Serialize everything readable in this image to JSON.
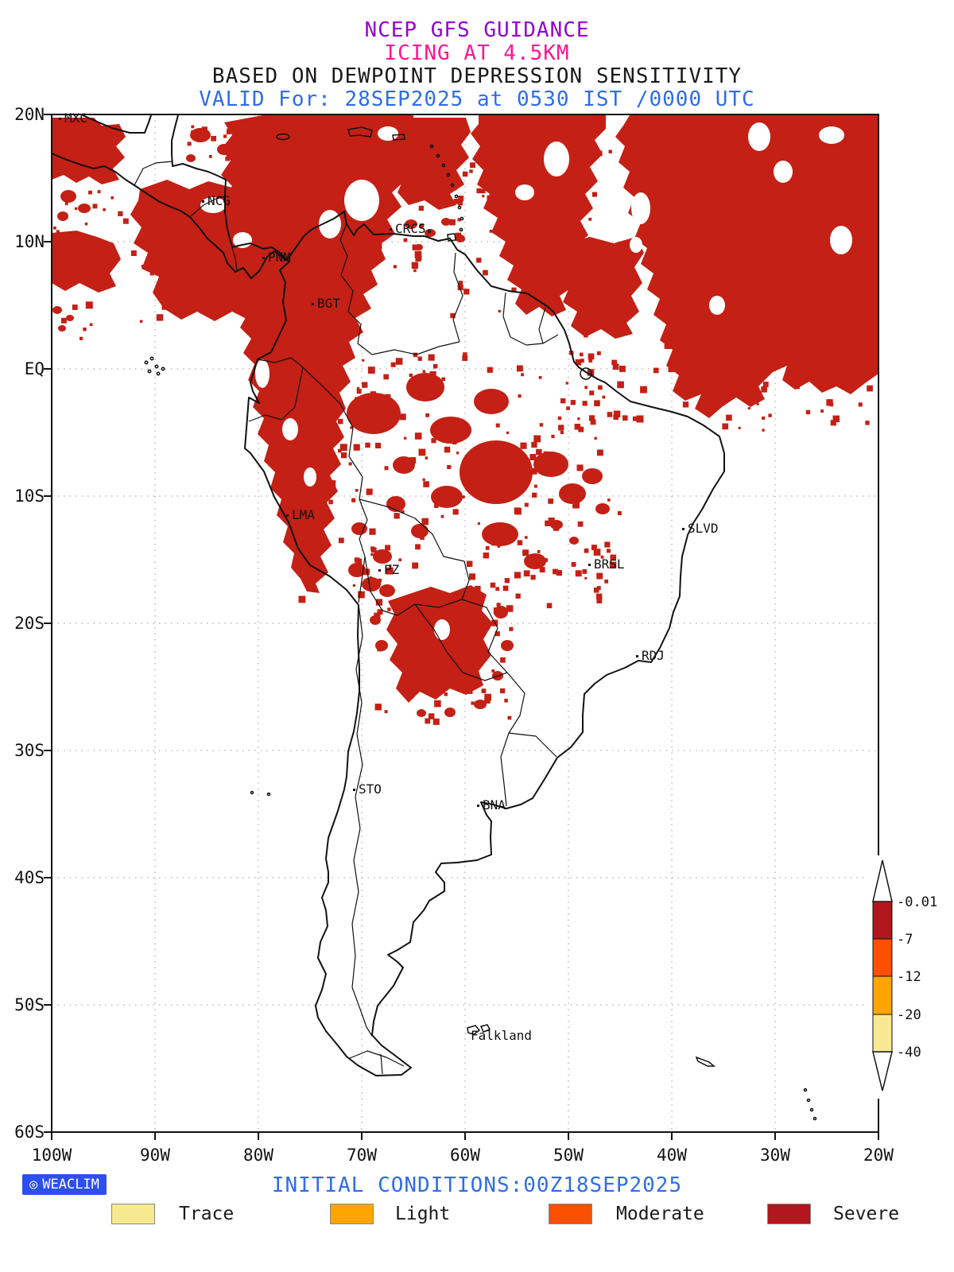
{
  "header": {
    "line1": "NCEP GFS GUIDANCE",
    "line2": "ICING AT 4.5KM",
    "line3": "BASED ON DEWPOINT DEPRESSION SENSITIVITY",
    "line4": "VALID For: 28SEP2025 at 0530 IST /0000 UTC"
  },
  "map": {
    "region": "South America",
    "lat_ticks": [
      "20N",
      "10N",
      "EQ",
      "10S",
      "20S",
      "30S",
      "40S",
      "50S",
      "60S"
    ],
    "lon_ticks": [
      "100W",
      "90W",
      "80W",
      "70W",
      "60W",
      "50W",
      "40W",
      "30W",
      "20W"
    ],
    "places": [
      {
        "label": "MXC"
      },
      {
        "label": "NCG"
      },
      {
        "label": "PNM"
      },
      {
        "label": "CRCS"
      },
      {
        "label": "BGT"
      },
      {
        "label": "LMA"
      },
      {
        "label": "PZ"
      },
      {
        "label": "BRSL"
      },
      {
        "label": "SLVD"
      },
      {
        "label": "RDJ"
      },
      {
        "label": "STO"
      },
      {
        "label": "BNA"
      },
      {
        "label": "Falkland"
      }
    ]
  },
  "colorbar": {
    "labels": [
      "-0.01",
      "-7",
      "-12",
      "-20",
      "-40"
    ],
    "colors": [
      "#B2151C",
      "#FD4F00",
      "#FFA400",
      "#F6E98F"
    ]
  },
  "legend": [
    {
      "label": "Trace",
      "color": "#F6E98F"
    },
    {
      "label": "Light",
      "color": "#FFA400"
    },
    {
      "label": "Moderate",
      "color": "#FD4F00"
    },
    {
      "label": "Severe",
      "color": "#B2151C"
    }
  ],
  "footer": {
    "logo_text": "WEACLIM",
    "initial_conditions": "INITIAL CONDITIONS:00Z18SEP2025"
  },
  "colors": {
    "icing_fill": "#C42015",
    "title_model": "#9400D3",
    "title_product": "#FF1493",
    "valid_blue": "#2E6CEB",
    "logo_bg": "#2D4FF0"
  }
}
